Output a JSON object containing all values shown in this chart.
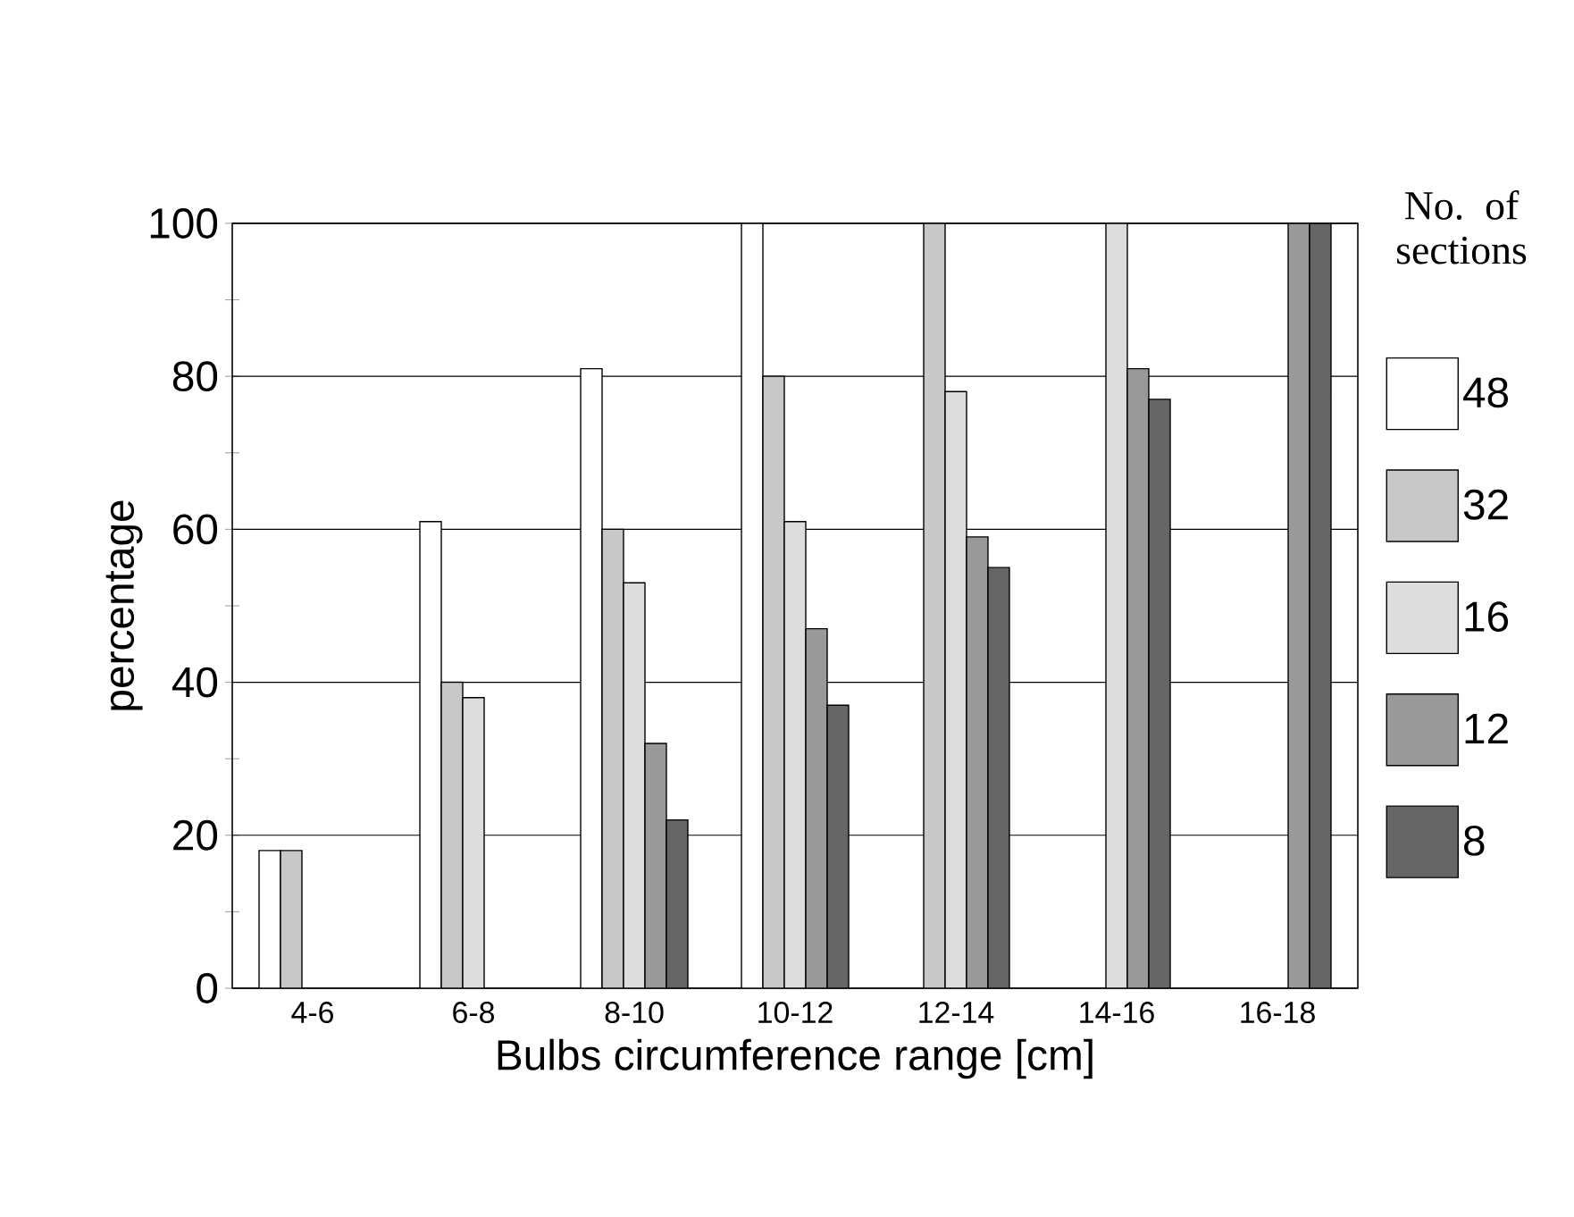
{
  "chart_data": {
    "type": "bar",
    "xlabel": "Bulbs circumference range [cm]",
    "ylabel": "percentage",
    "legend_title": "No. of sections",
    "categories": [
      "4-6",
      "6-8",
      "8-10",
      "10-12",
      "12-14",
      "14-16",
      "16-18"
    ],
    "series": [
      {
        "name": "48",
        "color": "#ffffff",
        "values": [
          18,
          61,
          81,
          100,
          null,
          null,
          null
        ]
      },
      {
        "name": "32",
        "color": "#c8c8c8",
        "values": [
          18,
          40,
          60,
          80,
          100,
          null,
          null
        ]
      },
      {
        "name": "16",
        "color": "#dddddd",
        "values": [
          null,
          38,
          53,
          61,
          78,
          100,
          null
        ]
      },
      {
        "name": "12",
        "color": "#999999",
        "values": [
          null,
          null,
          32,
          47,
          59,
          81,
          100
        ]
      },
      {
        "name": "8",
        "color": "#666666",
        "values": [
          null,
          null,
          22,
          37,
          55,
          77,
          100
        ]
      }
    ],
    "ylim": [
      0,
      100
    ],
    "yticks": [
      0,
      20,
      40,
      60,
      80,
      100
    ],
    "grid": "y",
    "legend": "right"
  }
}
